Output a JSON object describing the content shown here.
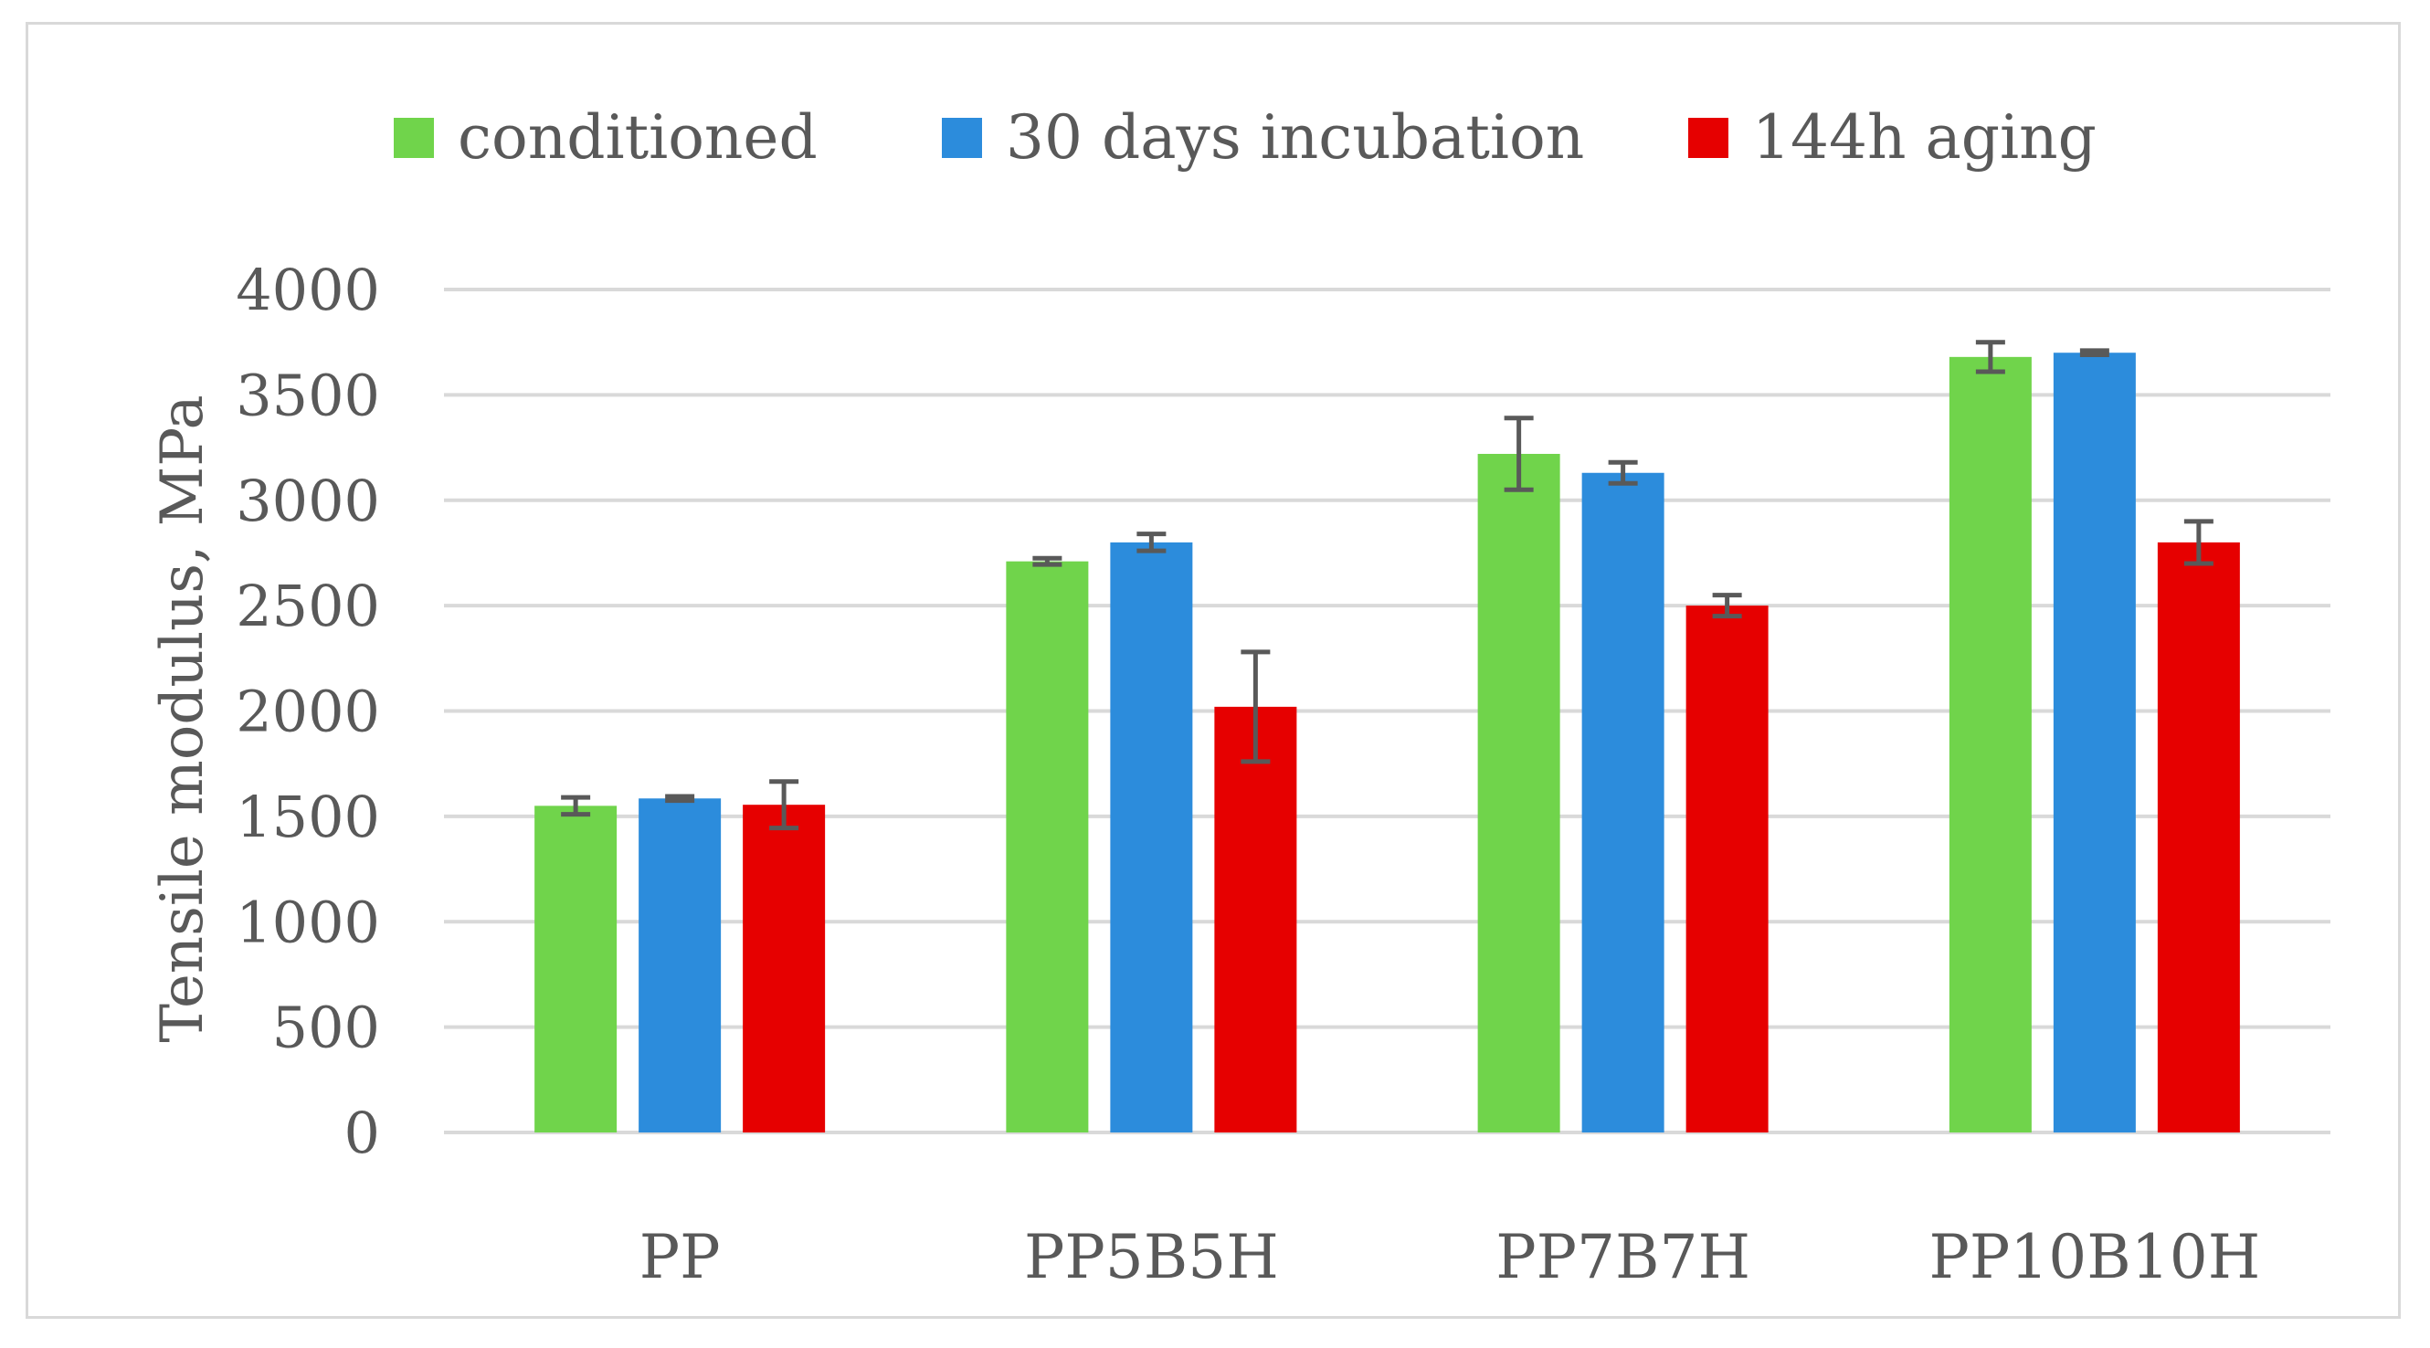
{
  "chart_data": {
    "type": "bar",
    "title": "",
    "xlabel": "",
    "ylabel": "Tensile modulus, MPa",
    "ylim": [
      0,
      4000
    ],
    "yticks": [
      0,
      500,
      1000,
      1500,
      2000,
      2500,
      3000,
      3500,
      4000
    ],
    "grid": true,
    "legend_position": "top",
    "categories": [
      "PP",
      "PP5B5H",
      "PP7B7H",
      "PP10B10H"
    ],
    "series": [
      {
        "name": "conditioned",
        "color": "#70d44b",
        "values": [
          1550,
          2710,
          3220,
          3680
        ],
        "errors": [
          40,
          15,
          170,
          70
        ]
      },
      {
        "name": "30 days incubation",
        "color": "#2c8cdc",
        "values": [
          1585,
          2800,
          3130,
          3700
        ],
        "errors": [
          10,
          40,
          50,
          10
        ]
      },
      {
        "name": "144h aging",
        "color": "#e60000",
        "values": [
          1555,
          2020,
          2500,
          2800
        ],
        "errors": [
          110,
          260,
          50,
          100
        ]
      }
    ]
  }
}
